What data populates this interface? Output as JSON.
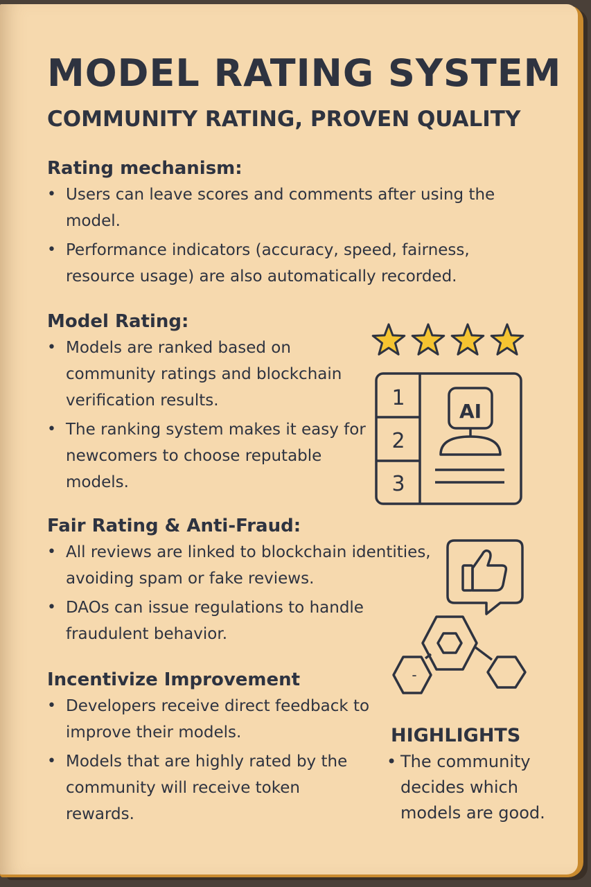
{
  "title": "MODEL RATING SYSTEM",
  "subtitle": "COMMUNITY RATING, PROVEN QUALITY",
  "sections": [
    {
      "heading": "Rating mechanism:",
      "bullets": [
        "Users can leave scores and comments after using the model.",
        "Performance indicators (accuracy, speed, fairness, resource usage) are also automatically recorded."
      ]
    },
    {
      "heading": "Model Rating:",
      "bullets": [
        "Models are ranked based on community ratings and blockchain verification results.",
        "The ranking system makes it easy for newcomers to choose reputable models."
      ]
    },
    {
      "heading": "Fair Rating & Anti-Fraud:",
      "bullets": [
        "All reviews are linked to blockchain identities, avoiding spam or fake reviews.",
        "DAOs can issue regulations to handle fraudulent behavior."
      ]
    },
    {
      "heading": "Incentivize Improvement",
      "bullets": [
        "Developers receive direct feedback to improve their models.",
        "Models that are highly rated by the community will receive token rewards."
      ]
    }
  ],
  "ranking_card": {
    "ranks": [
      "1",
      "2",
      "3"
    ],
    "badge": "AI"
  },
  "network_node_label": "-",
  "highlights": {
    "heading": "HIGHLIGHTS",
    "bullets": [
      "The community decides which models are good."
    ]
  },
  "stars": {
    "filled": 4,
    "total": 4,
    "color": "#f5c431"
  },
  "colors": {
    "page": "#f6d9ae",
    "ink": "#2e3340",
    "edge": "#c98a2e"
  }
}
